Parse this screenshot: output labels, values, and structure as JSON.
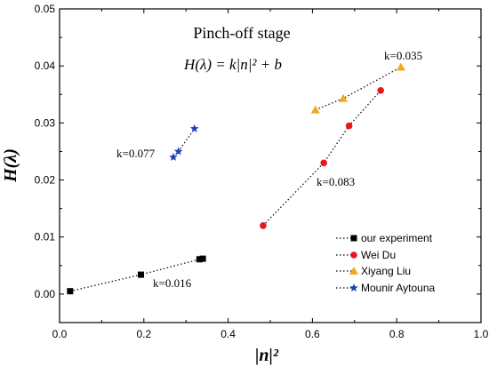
{
  "chart_data": {
    "type": "scatter",
    "title": "Pinch-off  stage",
    "equation": "H(λ) = k|n|² + b",
    "xlabel": "|n|²",
    "ylabel": "H(λ)",
    "xlim": [
      0.0,
      1.0
    ],
    "ylim": [
      -0.005,
      0.05
    ],
    "xticks": [
      "0.0",
      "0.2",
      "0.4",
      "0.6",
      "0.8",
      "1.0"
    ],
    "yticks": [
      "0.00",
      "0.01",
      "0.02",
      "0.03",
      "0.04",
      "0.05"
    ],
    "grid": false,
    "legend_position": "bottom-right",
    "series": [
      {
        "name": "our experiment",
        "marker": "square",
        "color": "#000000",
        "x": [
          0.025,
          0.193,
          0.332,
          0.34
        ],
        "y": [
          0.0005,
          0.0034,
          0.0061,
          0.0062
        ],
        "annotation": "k=0.016"
      },
      {
        "name": "Wei Du",
        "marker": "circle",
        "color": "#e8151b",
        "x": [
          0.483,
          0.627,
          0.687,
          0.762
        ],
        "y": [
          0.012,
          0.023,
          0.0295,
          0.0357
        ],
        "annotation": "k=0.083"
      },
      {
        "name": "Xiyang Liu",
        "marker": "triangle",
        "color": "#f5a81c",
        "x": [
          0.607,
          0.673,
          0.81
        ],
        "y": [
          0.0323,
          0.0343,
          0.0398
        ],
        "annotation": "k=0.035"
      },
      {
        "name": "Mounir Aytouna",
        "marker": "star",
        "color": "#1f3fb4",
        "x": [
          0.27,
          0.282,
          0.32
        ],
        "y": [
          0.024,
          0.025,
          0.029
        ],
        "annotation": "k=0.077"
      }
    ]
  }
}
